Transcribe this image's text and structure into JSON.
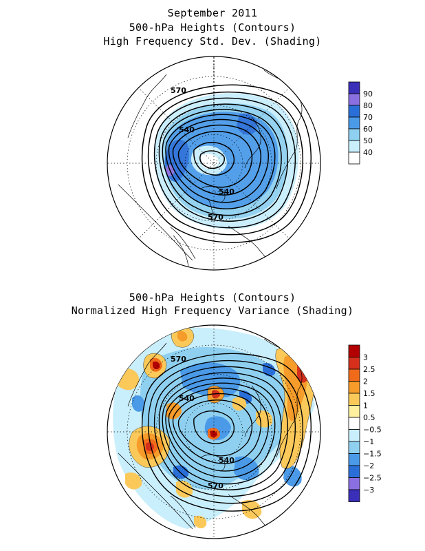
{
  "top_panel": {
    "title_lines": [
      "September 2011",
      "500-hPa Heights (Contours)",
      "High Frequency Std. Dev. (Shading)"
    ],
    "contour_labels": [
      "570",
      "540",
      "540",
      "570"
    ],
    "colorbar": {
      "ticks": [
        "90",
        "80",
        "70",
        "60",
        "50",
        "40"
      ],
      "colors": [
        "#3a2fb8",
        "#8a6fe0",
        "#2a6fd8",
        "#4a9ae8",
        "#8fd0f0",
        "#c9eefc",
        "#ffffff"
      ]
    }
  },
  "bottom_panel": {
    "title_lines": [
      "500-hPa Heights (Contours)",
      "Normalized High Frequency Variance (Shading)"
    ],
    "contour_labels": [
      "570",
      "540",
      "540",
      "570"
    ],
    "colorbar": {
      "ticks": [
        "3",
        "2.5",
        "2",
        "1.5",
        "1",
        "0.5",
        "−0.5",
        "−1",
        "−1.5",
        "−2",
        "−2.5",
        "−3"
      ],
      "colors": [
        "#b30000",
        "#d6301d",
        "#f06a1a",
        "#f59c2a",
        "#fbc95a",
        "#fff0a0",
        "#ffffff",
        "#c9eefc",
        "#8fd0f0",
        "#4a9ae8",
        "#2a6fd8",
        "#8a6fe0",
        "#3a2fb8"
      ]
    }
  }
}
